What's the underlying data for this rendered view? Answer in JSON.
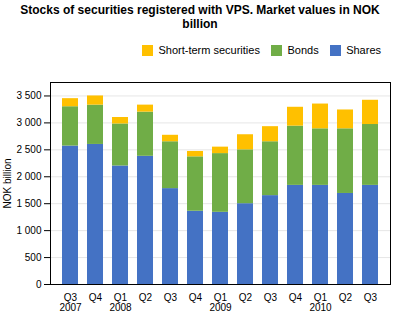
{
  "chart_data": {
    "type": "bar",
    "stacked": true,
    "title": "Stocks of securities registered with VPS. Market values in NOK billion",
    "ylabel": "NOK billion",
    "categories": [
      "Q3\n2007",
      "Q4",
      "Q1\n2008",
      "Q2",
      "Q3",
      "Q4",
      "Q1\n2009",
      "Q2",
      "Q3",
      "Q4",
      "Q1\n2010",
      "Q2",
      "Q3"
    ],
    "series": [
      {
        "name": "Shares",
        "color": "#4472c4",
        "values": [
          2570,
          2600,
          2200,
          2380,
          1780,
          1360,
          1340,
          1500,
          1650,
          1840,
          1840,
          1690,
          1840
        ]
      },
      {
        "name": "Bonds",
        "color": "#70ad47",
        "values": [
          730,
          730,
          780,
          820,
          870,
          1010,
          1090,
          1000,
          1000,
          1100,
          1050,
          1200,
          1130
        ]
      },
      {
        "name": "Short-term securities",
        "color": "#ffc000",
        "values": [
          150,
          170,
          120,
          130,
          120,
          100,
          120,
          280,
          280,
          350,
          460,
          350,
          450
        ]
      }
    ],
    "ylim": [
      0,
      3750
    ],
    "yticks": [
      0,
      500,
      {
        "value": 1000,
        "label": "1 000"
      },
      {
        "value": 1500,
        "label": "1 500"
      },
      {
        "value": 2000,
        "label": "2 000"
      },
      {
        "value": 2500,
        "label": "2 500"
      },
      {
        "value": 3000,
        "label": "3 000"
      },
      {
        "value": 3500,
        "label": "3 500"
      }
    ],
    "grid": true,
    "legend": "upper right"
  }
}
